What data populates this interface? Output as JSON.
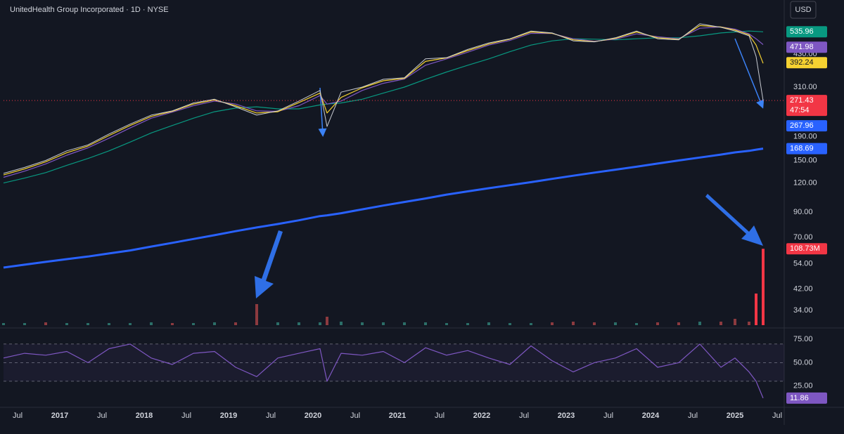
{
  "header": {
    "title": "UnitedHealth Group Incorporated · 1D · NYSE",
    "currency": "USD"
  },
  "chart_data": [
    {
      "type": "line",
      "log": true,
      "grid": false,
      "price_line": true,
      "countdown": "47:54",
      "x": [
        "2016-05",
        "2016-08",
        "2016-11",
        "2017-02",
        "2017-05",
        "2017-08",
        "2017-11",
        "2018-02",
        "2018-05",
        "2018-08",
        "2018-11",
        "2019-02",
        "2019-05",
        "2019-08",
        "2019-11",
        "2020-02",
        "2020-03",
        "2020-05",
        "2020-08",
        "2020-11",
        "2021-02",
        "2021-05",
        "2021-08",
        "2021-11",
        "2022-02",
        "2022-05",
        "2022-08",
        "2022-11",
        "2023-02",
        "2023-05",
        "2023-08",
        "2023-11",
        "2024-02",
        "2024-05",
        "2024-08",
        "2024-11",
        "2025-01",
        "2025-03",
        "2025-04",
        "2025-05"
      ],
      "xlim": [
        "2016-05",
        "2025-08"
      ],
      "ylim": [
        29,
        734
      ],
      "yticks": [
        {
          "value": 430,
          "label": "430.00"
        },
        {
          "value": 310,
          "label": "310.00"
        },
        {
          "value": 190,
          "label": "190.00"
        },
        {
          "value": 150,
          "label": "150.00"
        },
        {
          "value": 120,
          "label": "120.00"
        },
        {
          "value": 90,
          "label": "90.00"
        },
        {
          "value": 70,
          "label": "70.00"
        },
        {
          "value": 54,
          "label": "54.00"
        },
        {
          "value": 42,
          "label": "42.00"
        },
        {
          "value": 34,
          "label": "34.00"
        }
      ],
      "series": [
        {
          "color": "#089981",
          "width": 1.2,
          "values": [
            120,
            126,
            133,
            143,
            153,
            165,
            180,
            197,
            212,
            228,
            243,
            252,
            255,
            250,
            250,
            260,
            262,
            265,
            275,
            292,
            310,
            335,
            360,
            385,
            410,
            440,
            470,
            490,
            500,
            498,
            495,
            500,
            505,
            505,
            515,
            530,
            535,
            540,
            538,
            535.96
          ]
        },
        {
          "color": "#7e57c2",
          "width": 1.2,
          "values": [
            127,
            135,
            145,
            158,
            170,
            187,
            207,
            228,
            242,
            258,
            270,
            262,
            245,
            244,
            258,
            285,
            262,
            270,
            300,
            322,
            336,
            385,
            410,
            438,
            470,
            492,
            528,
            527,
            500,
            488,
            498,
            525,
            510,
            500,
            555,
            562,
            550,
            525,
            500,
            471.98
          ]
        },
        {
          "color": "#f5d131",
          "width": 1.2,
          "values": [
            130,
            138,
            148,
            162,
            173,
            192,
            212,
            232,
            244,
            262,
            273,
            258,
            240,
            243,
            266,
            292,
            240,
            280,
            308,
            330,
            338,
            400,
            414,
            445,
            475,
            498,
            535,
            528,
            495,
            486,
            502,
            535,
            505,
            497,
            570,
            562,
            545,
            520,
            470,
            392.24
          ]
        },
        {
          "color": "#c8cbd2",
          "box_color": "#f23645",
          "width": 1,
          "values": [
            132,
            140,
            150,
            165,
            175,
            195,
            215,
            235,
            245,
            265,
            275,
            255,
            235,
            245,
            270,
            300,
            210,
            295,
            310,
            335,
            340,
            410,
            415,
            450,
            480,
            500,
            540,
            530,
            490,
            485,
            505,
            540,
            500,
            495,
            580,
            560,
            540,
            515,
            420,
            271.43
          ]
        },
        {
          "color": "#2962ff",
          "width": 3,
          "values": [
            52,
            53.5,
            55,
            56.5,
            58,
            59.8,
            61.6,
            64,
            66.4,
            69,
            71.6,
            74.5,
            77.3,
            80,
            83,
            86.5,
            87.2,
            89,
            92.5,
            96,
            99.5,
            103,
            107,
            110.5,
            114,
            117.5,
            121,
            125,
            129,
            133,
            137,
            141,
            145.5,
            150,
            154.5,
            159,
            162.5,
            165,
            167,
            168.69
          ]
        }
      ],
      "levels": [
        {
          "value": 267.96,
          "color": "#2962ff"
        }
      ]
    },
    {
      "type": "bar",
      "x": [
        "2016-05",
        "2016-08",
        "2016-11",
        "2017-02",
        "2017-05",
        "2017-08",
        "2017-11",
        "2018-02",
        "2018-05",
        "2018-08",
        "2018-11",
        "2019-02",
        "2019-05",
        "2019-08",
        "2019-11",
        "2020-02",
        "2020-03",
        "2020-05",
        "2020-08",
        "2020-11",
        "2021-02",
        "2021-05",
        "2021-08",
        "2021-11",
        "2022-02",
        "2022-05",
        "2022-08",
        "2022-11",
        "2023-02",
        "2023-05",
        "2023-08",
        "2023-11",
        "2024-02",
        "2024-05",
        "2024-08",
        "2024-11",
        "2025-01",
        "2025-03",
        "2025-04",
        "2025-05"
      ],
      "xlim": [
        "2016-05",
        "2025-08"
      ],
      "ylim": [
        0,
        110
      ],
      "values": [
        3,
        3,
        4,
        3,
        3,
        3,
        3,
        4,
        3,
        3,
        4,
        4,
        30,
        4,
        4,
        4,
        12,
        5,
        4,
        4,
        4,
        4,
        3,
        3,
        4,
        3,
        3,
        4,
        5,
        4,
        4,
        3,
        4,
        4,
        5,
        5,
        9,
        5,
        45,
        108.73
      ],
      "value_labels": [
        null,
        null,
        null,
        null,
        null,
        null,
        null,
        null,
        null,
        null,
        null,
        null,
        null,
        null,
        null,
        null,
        null,
        null,
        null,
        null,
        null,
        null,
        null,
        null,
        null,
        null,
        null,
        null,
        null,
        null,
        null,
        null,
        null,
        null,
        null,
        null,
        null,
        null,
        null,
        "108.73M"
      ],
      "colors": [
        "#2b6e68",
        "#2b6e68",
        "#8c3a3f",
        "#2b6e68",
        "#2b6e68",
        "#2b6e68",
        "#2b6e68",
        "#2b6e68",
        "#8c3a3f",
        "#2b6e68",
        "#2b6e68",
        "#8c3a3f",
        "#8c3a3f",
        "#2b6e68",
        "#2b6e68",
        "#2b6e68",
        "#8c3a3f",
        "#2b6e68",
        "#2b6e68",
        "#2b6e68",
        "#2b6e68",
        "#2b6e68",
        "#2b6e68",
        "#2b6e68",
        "#2b6e68",
        "#2b6e68",
        "#2b6e68",
        "#8c3a3f",
        "#8c3a3f",
        "#8c3a3f",
        "#2b6e68",
        "#2b6e68",
        "#8c3a3f",
        "#8c3a3f",
        "#2b6e68",
        "#8c3a3f",
        "#8c3a3f",
        "#8c3a3f",
        "#f23645",
        "#f23645"
      ]
    },
    {
      "type": "line",
      "log": false,
      "x": [
        "2016-05",
        "2016-08",
        "2016-11",
        "2017-02",
        "2017-05",
        "2017-08",
        "2017-11",
        "2018-02",
        "2018-05",
        "2018-08",
        "2018-11",
        "2019-02",
        "2019-05",
        "2019-08",
        "2019-11",
        "2020-02",
        "2020-03",
        "2020-05",
        "2020-08",
        "2020-11",
        "2021-02",
        "2021-05",
        "2021-08",
        "2021-11",
        "2022-02",
        "2022-05",
        "2022-08",
        "2022-11",
        "2023-02",
        "2023-05",
        "2023-08",
        "2023-11",
        "2024-02",
        "2024-05",
        "2024-08",
        "2024-11",
        "2025-01",
        "2025-03",
        "2025-04",
        "2025-05"
      ],
      "xlim": [
        "2016-05",
        "2025-08"
      ],
      "ylim": [
        2,
        85
      ],
      "yticks": [
        {
          "value": 75,
          "label": "75.00"
        },
        {
          "value": 50,
          "label": "50.00"
        },
        {
          "value": 25,
          "label": "25.00"
        }
      ],
      "guides": [
        30,
        50,
        70
      ],
      "series": [
        {
          "color": "#7e57c2",
          "width": 1.2,
          "values": [
            55,
            60,
            58,
            62,
            50,
            65,
            70,
            55,
            48,
            60,
            62,
            45,
            35,
            55,
            60,
            65,
            30,
            60,
            58,
            62,
            50,
            66,
            58,
            63,
            55,
            48,
            68,
            52,
            40,
            50,
            55,
            65,
            45,
            50,
            70,
            45,
            55,
            40,
            30,
            11.86
          ]
        }
      ],
      "xticks": [
        {
          "value": "2016-07",
          "label": "Jul"
        },
        {
          "value": "2017-01",
          "label": "2017"
        },
        {
          "value": "2017-07",
          "label": "Jul"
        },
        {
          "value": "2018-01",
          "label": "2018"
        },
        {
          "value": "2018-07",
          "label": "Jul"
        },
        {
          "value": "2019-01",
          "label": "2019"
        },
        {
          "value": "2019-07",
          "label": "Jul"
        },
        {
          "value": "2020-01",
          "label": "2020"
        },
        {
          "value": "2020-07",
          "label": "Jul"
        },
        {
          "value": "2021-01",
          "label": "2021"
        },
        {
          "value": "2021-07",
          "label": "Jul"
        },
        {
          "value": "2022-01",
          "label": "2022"
        },
        {
          "value": "2022-07",
          "label": "Jul"
        },
        {
          "value": "2023-01",
          "label": "2023"
        },
        {
          "value": "2023-07",
          "label": "Jul"
        },
        {
          "value": "2024-01",
          "label": "2024"
        },
        {
          "value": "2024-07",
          "label": "Jul"
        },
        {
          "value": "2025-01",
          "label": "2025"
        },
        {
          "value": "2025-07",
          "label": "Jul"
        }
      ]
    }
  ]
}
